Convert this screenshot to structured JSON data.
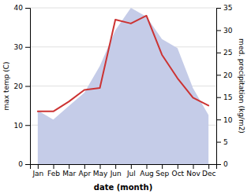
{
  "chart_data": {
    "type": "line",
    "xlabel": "date (month)",
    "ylabel": "max temp (C)",
    "y2label": "med. precipitation (kg/m2)",
    "categories": [
      "Jan",
      "Feb",
      "Mar",
      "Apr",
      "May",
      "Jun",
      "Jul",
      "Aug",
      "Sep",
      "Oct",
      "Nov",
      "Dec"
    ],
    "series": [
      {
        "type": "area",
        "axis": "y2",
        "color": "#c5cce8",
        "values": [
          12,
          10,
          13,
          16,
          22,
          30,
          35,
          33,
          28,
          26,
          17,
          11
        ]
      },
      {
        "type": "line",
        "color": "#cc3333",
        "values": [
          13.5,
          13.5,
          16,
          19,
          19.5,
          37,
          36,
          38,
          28,
          22,
          17,
          15
        ]
      }
    ],
    "ylim": [
      0,
      40
    ],
    "yticks": [
      0,
      10,
      20,
      30,
      40
    ],
    "y2lim": [
      0,
      35
    ],
    "y2ticks": [
      0,
      5,
      10,
      15,
      20,
      25,
      30,
      35
    ],
    "grid": true
  }
}
